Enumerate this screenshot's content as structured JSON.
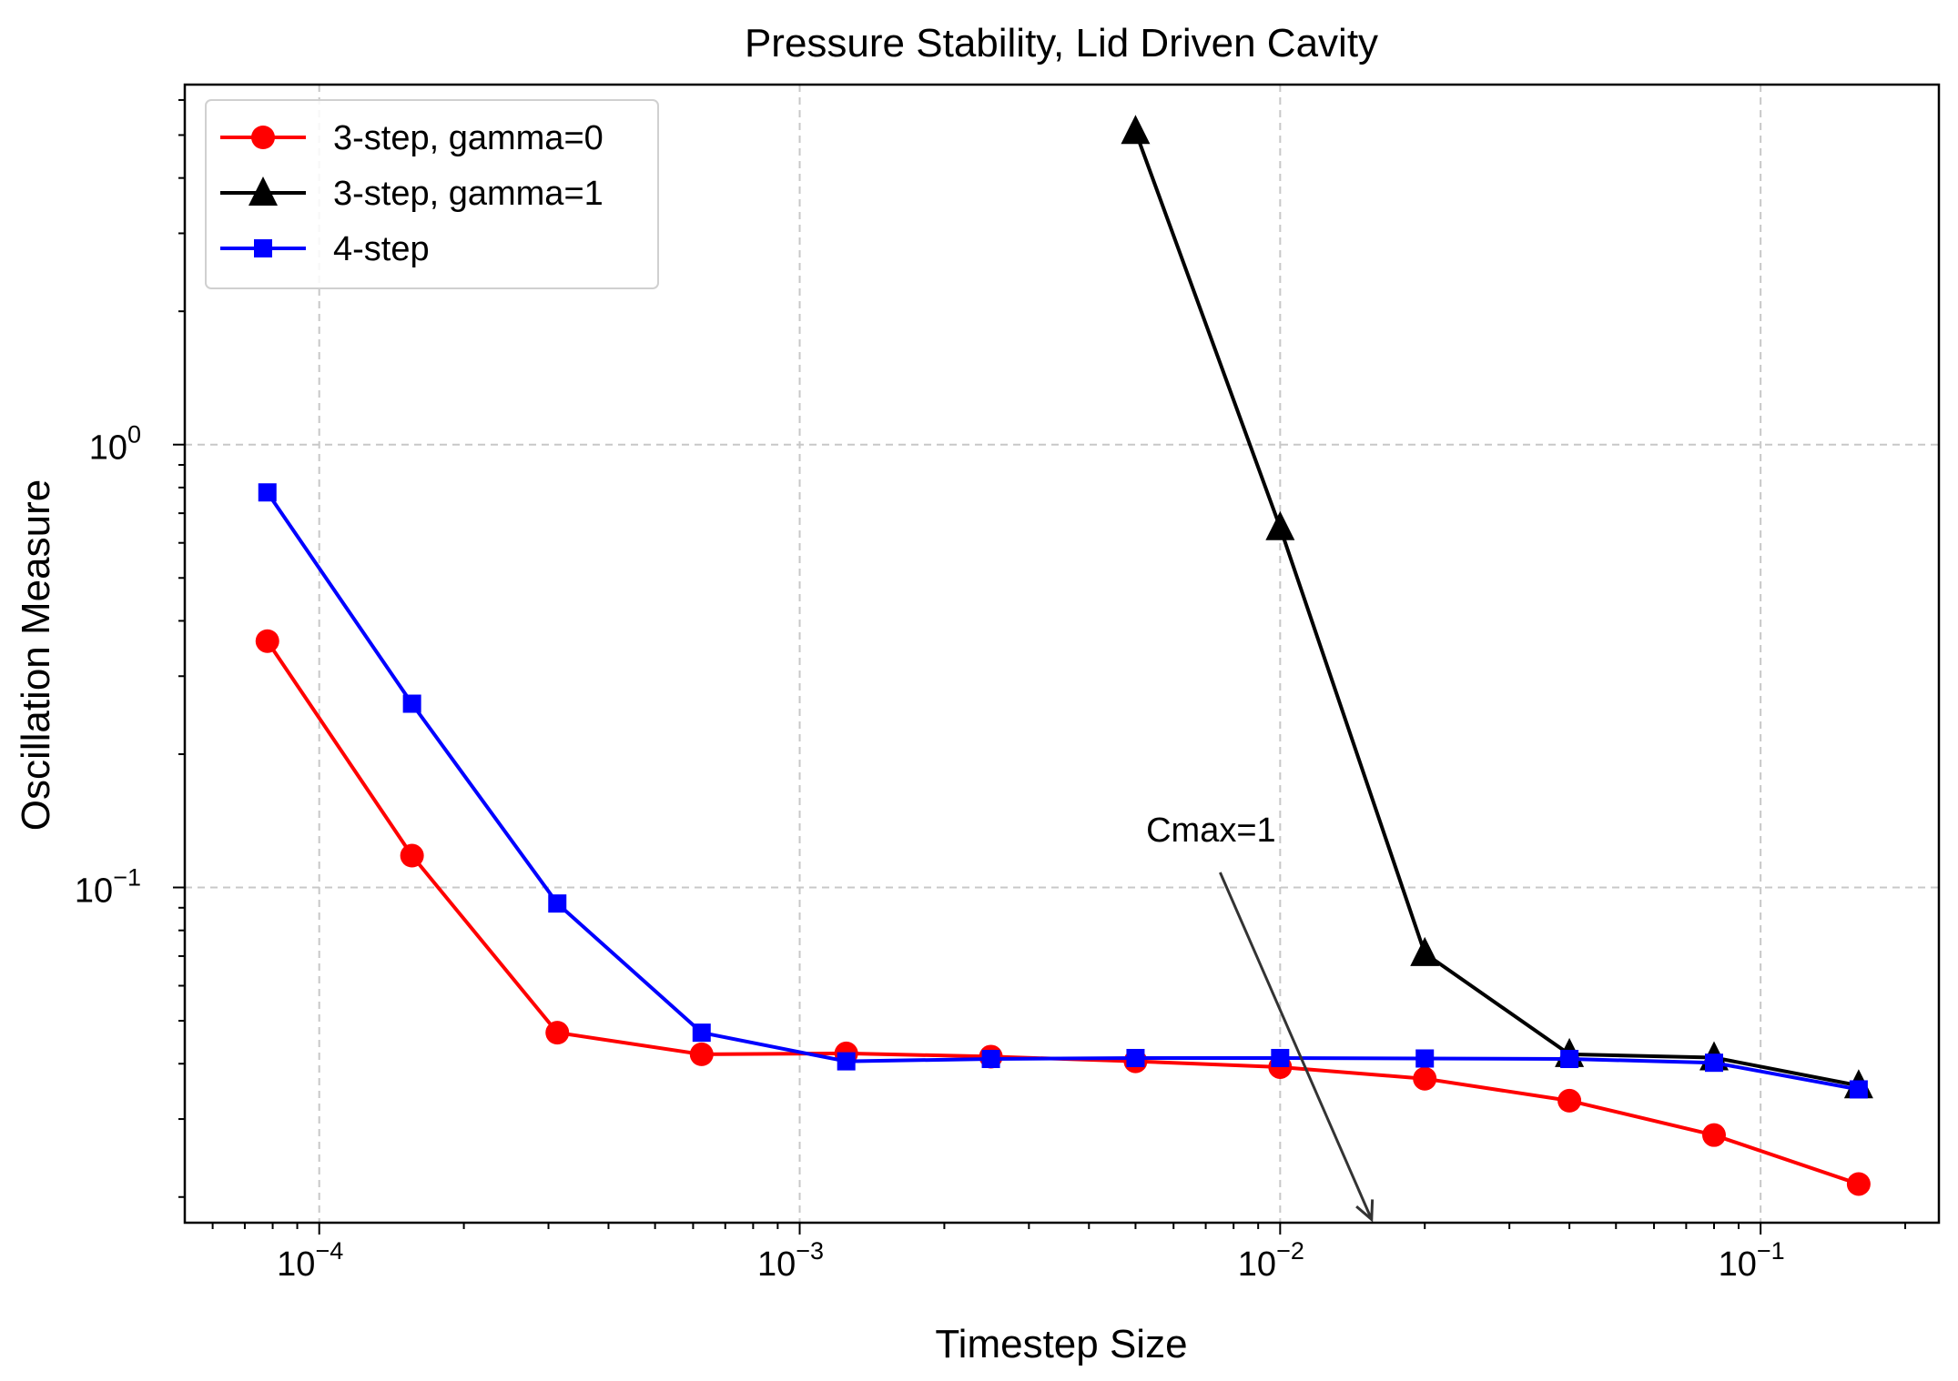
{
  "chart_data": {
    "type": "line",
    "title": "Pressure Stability, Lid Driven Cavity",
    "xlabel": "Timestep Size",
    "ylabel": "Oscillation Measure",
    "xscale": "log",
    "yscale": "log",
    "xlim": [
      5.25e-05,
      0.235
    ],
    "ylim": [
      0.0175,
      6.5
    ],
    "grid": true,
    "legend_position": "top-left",
    "x_ticks": [
      {
        "value": 0.0001,
        "base": "10",
        "exp": "−4"
      },
      {
        "value": 0.001,
        "base": "10",
        "exp": "−3"
      },
      {
        "value": 0.01,
        "base": "10",
        "exp": "−2"
      },
      {
        "value": 0.1,
        "base": "10",
        "exp": "−1"
      }
    ],
    "y_ticks": [
      {
        "value": 0.1,
        "base": "10",
        "exp": "−1"
      },
      {
        "value": 1,
        "base": "10",
        "exp": "0"
      }
    ],
    "series": [
      {
        "name": "3-step, gamma=0",
        "color": "#ff0000",
        "marker": "circle",
        "x": [
          7.8e-05,
          0.000156,
          0.000313,
          0.000625,
          0.00125,
          0.0025,
          0.005,
          0.01,
          0.02,
          0.04,
          0.08,
          0.16
        ],
        "y": [
          0.36,
          0.118,
          0.047,
          0.042,
          0.0422,
          0.0415,
          0.0405,
          0.0393,
          0.037,
          0.033,
          0.0276,
          0.0214
        ]
      },
      {
        "name": "3-step, gamma=1",
        "color": "#000000",
        "marker": "triangle",
        "x": [
          0.005,
          0.01,
          0.02,
          0.04,
          0.08,
          0.16
        ],
        "y": [
          5.1,
          0.65,
          0.071,
          0.042,
          0.0413,
          0.0357
        ]
      },
      {
        "name": "4-step",
        "color": "#0000ff",
        "marker": "square",
        "x": [
          7.8e-05,
          0.000156,
          0.000313,
          0.000625,
          0.00125,
          0.0025,
          0.005,
          0.01,
          0.02,
          0.04,
          0.08,
          0.16
        ],
        "y": [
          0.78,
          0.26,
          0.092,
          0.047,
          0.0405,
          0.041,
          0.0412,
          0.0412,
          0.0411,
          0.041,
          0.0402,
          0.035
        ]
      }
    ],
    "annotation": {
      "text": "Cmax=1",
      "color": "#333333",
      "text_at": [
        0.0075,
        0.12
      ],
      "arrow_to": [
        0.0155,
        0.0178
      ]
    }
  }
}
